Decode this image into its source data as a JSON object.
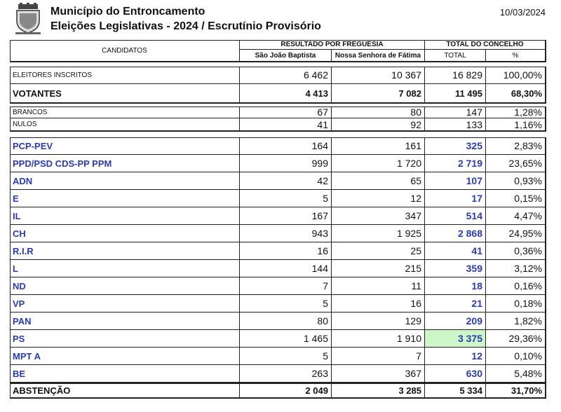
{
  "header": {
    "title": "Município do Entroncamento",
    "subtitle": "Eleições Legislativas - 2024 / Escrutínio Provisório",
    "date": "10/03/2024"
  },
  "table": {
    "columns": {
      "candidates": "CANDIDATOS",
      "by_parish": "RESULTADO POR FREGUESIA",
      "council_total": "TOTAL DO CONCELHO",
      "parishes": [
        "São João Baptista",
        "Nossa Senhora de Fátima"
      ],
      "total": "TOTAL",
      "percent": "%"
    },
    "summary": [
      [
        "ELEITORES INSCRITOS",
        "6 462",
        "10 367",
        "16 829",
        "100,00%"
      ],
      [
        "VOTANTES",
        "4 413",
        "7 082",
        "11 495",
        "68,30%"
      ]
    ],
    "blank_null": [
      [
        "BRANCOS",
        "67",
        "80",
        "147",
        "1,28%"
      ],
      [
        "NULOS",
        "41",
        "92",
        "133",
        "1,16%"
      ]
    ],
    "parties": [
      [
        "PCP-PEV",
        "164",
        "161",
        "325",
        "2,83%"
      ],
      [
        "PPD/PSD CDS-PP PPM",
        "999",
        "1 720",
        "2 719",
        "23,65%"
      ],
      [
        "ADN",
        "42",
        "65",
        "107",
        "0,93%"
      ],
      [
        "E",
        "5",
        "12",
        "17",
        "0,15%"
      ],
      [
        "IL",
        "167",
        "347",
        "514",
        "4,47%"
      ],
      [
        "CH",
        "943",
        "1 925",
        "2 868",
        "24,95%"
      ],
      [
        "R.I.R",
        "16",
        "25",
        "41",
        "0,36%"
      ],
      [
        "L",
        "144",
        "215",
        "359",
        "3,12%"
      ],
      [
        "ND",
        "7",
        "11",
        "18",
        "0,16%"
      ],
      [
        "VP",
        "5",
        "16",
        "21",
        "0,18%"
      ],
      [
        "PAN",
        "80",
        "129",
        "209",
        "1,82%"
      ],
      [
        "PS",
        "1 465",
        "1 910",
        "3 375",
        "29,36%"
      ],
      [
        "MPT A",
        "5",
        "7",
        "12",
        "0,10%"
      ],
      [
        "BE",
        "263",
        "367",
        "630",
        "5,48%"
      ]
    ],
    "abstention": [
      [
        "ABSTENÇÃO",
        "2 049",
        "3 285",
        "5 334",
        "31,70%"
      ]
    ]
  }
}
